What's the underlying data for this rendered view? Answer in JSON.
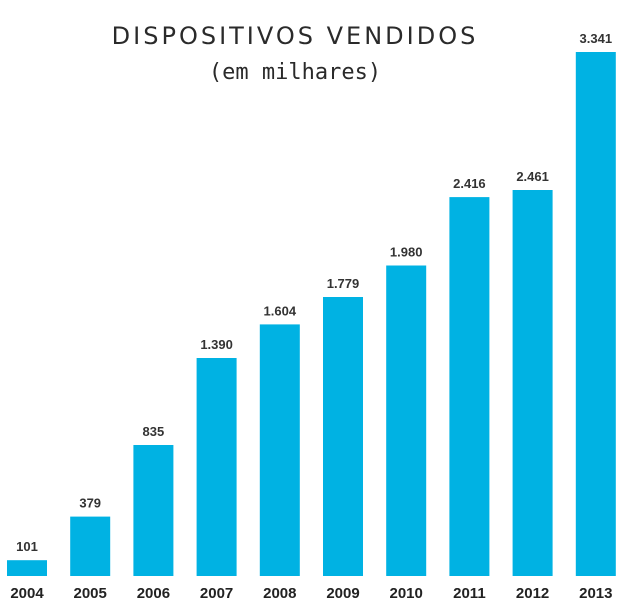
{
  "chart_data": {
    "type": "bar",
    "title": "DISPOSITIVOS VENDIDOS",
    "subtitle": "(em milhares)",
    "categories": [
      "2004",
      "2005",
      "2006",
      "2007",
      "2008",
      "2009",
      "2010",
      "2011",
      "2012",
      "2013"
    ],
    "values": [
      101,
      379,
      835,
      1390,
      1604,
      1779,
      1980,
      2416,
      2461,
      3341
    ],
    "value_labels": [
      "101",
      "379",
      "835",
      "1.390",
      "1.604",
      "1.779",
      "1.980",
      "2.416",
      "2.461",
      "3.341"
    ],
    "xlabel": "",
    "ylabel": "",
    "ylim": [
      0,
      3341
    ],
    "grid": false,
    "bar_color": "#00b2e3"
  }
}
